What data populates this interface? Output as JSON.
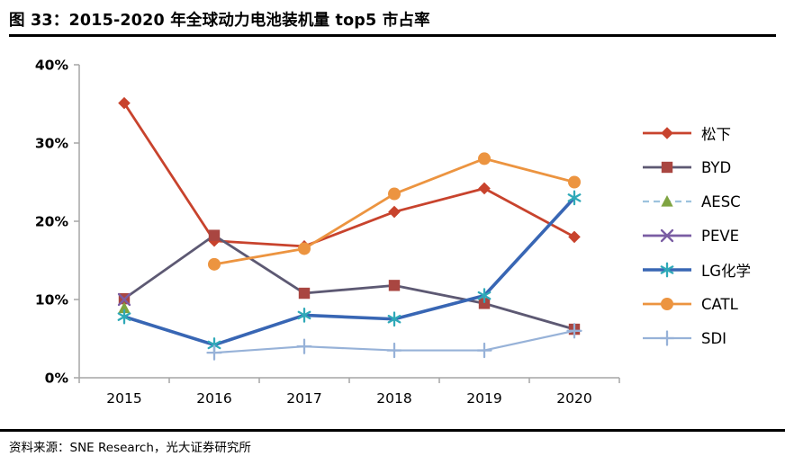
{
  "title": "图 33：2015-2020 年全球动力电池装机量 top5 市占率",
  "footer": "资料来源：SNE Research，光大证券研究所",
  "chart_data": {
    "type": "line",
    "title": "2015-2020 年全球动力电池装机量 top5 市占率",
    "categories": [
      "2015",
      "2016",
      "2017",
      "2018",
      "2019",
      "2020"
    ],
    "series": [
      {
        "name": "松下",
        "color": "#C8432D",
        "marker": "diamond",
        "marker_color": "#C8432D",
        "line_width": 2.8,
        "dashed": false,
        "values": [
          35.1,
          17.5,
          16.8,
          21.2,
          24.2,
          18.0
        ]
      },
      {
        "name": "BYD",
        "color": "#5D5973",
        "marker": "square",
        "marker_color": "#A94641",
        "line_width": 2.8,
        "dashed": false,
        "values": [
          10.1,
          18.2,
          10.8,
          11.8,
          9.5,
          6.2
        ]
      },
      {
        "name": "AESC",
        "color": "#9DC3DE",
        "marker": "triangle",
        "marker_color": "#7FA441",
        "line_width": 2.2,
        "dashed": true,
        "values": [
          8.9,
          null,
          null,
          null,
          null,
          null
        ]
      },
      {
        "name": "PEVE",
        "color": "#7A5DA3",
        "marker": "x",
        "marker_color": "#7A5DA3",
        "line_width": 2.8,
        "dashed": false,
        "values": [
          10.0,
          null,
          null,
          null,
          null,
          null
        ]
      },
      {
        "name": "LG化学",
        "color": "#3866B4",
        "marker": "asterisk",
        "marker_color": "#2FA9B8",
        "line_width": 3.6,
        "dashed": false,
        "values": [
          7.8,
          4.2,
          8.0,
          7.5,
          10.5,
          23.0
        ]
      },
      {
        "name": "CATL",
        "color": "#EC9440",
        "marker": "circle",
        "marker_color": "#EC9440",
        "line_width": 2.8,
        "dashed": false,
        "values": [
          null,
          14.5,
          16.5,
          23.5,
          28.0,
          25.0
        ]
      },
      {
        "name": "SDI",
        "color": "#97B2D8",
        "marker": "plus",
        "marker_color": "#97B2D8",
        "line_width": 2.2,
        "dashed": false,
        "values": [
          null,
          3.2,
          4.0,
          3.5,
          3.5,
          6.0
        ]
      }
    ],
    "y_ticks": [
      "0%",
      "10%",
      "20%",
      "30%",
      "40%"
    ],
    "ylim": [
      0,
      40
    ],
    "grid": false,
    "legend_position": "right",
    "axis_color": "#A6A6A6"
  }
}
